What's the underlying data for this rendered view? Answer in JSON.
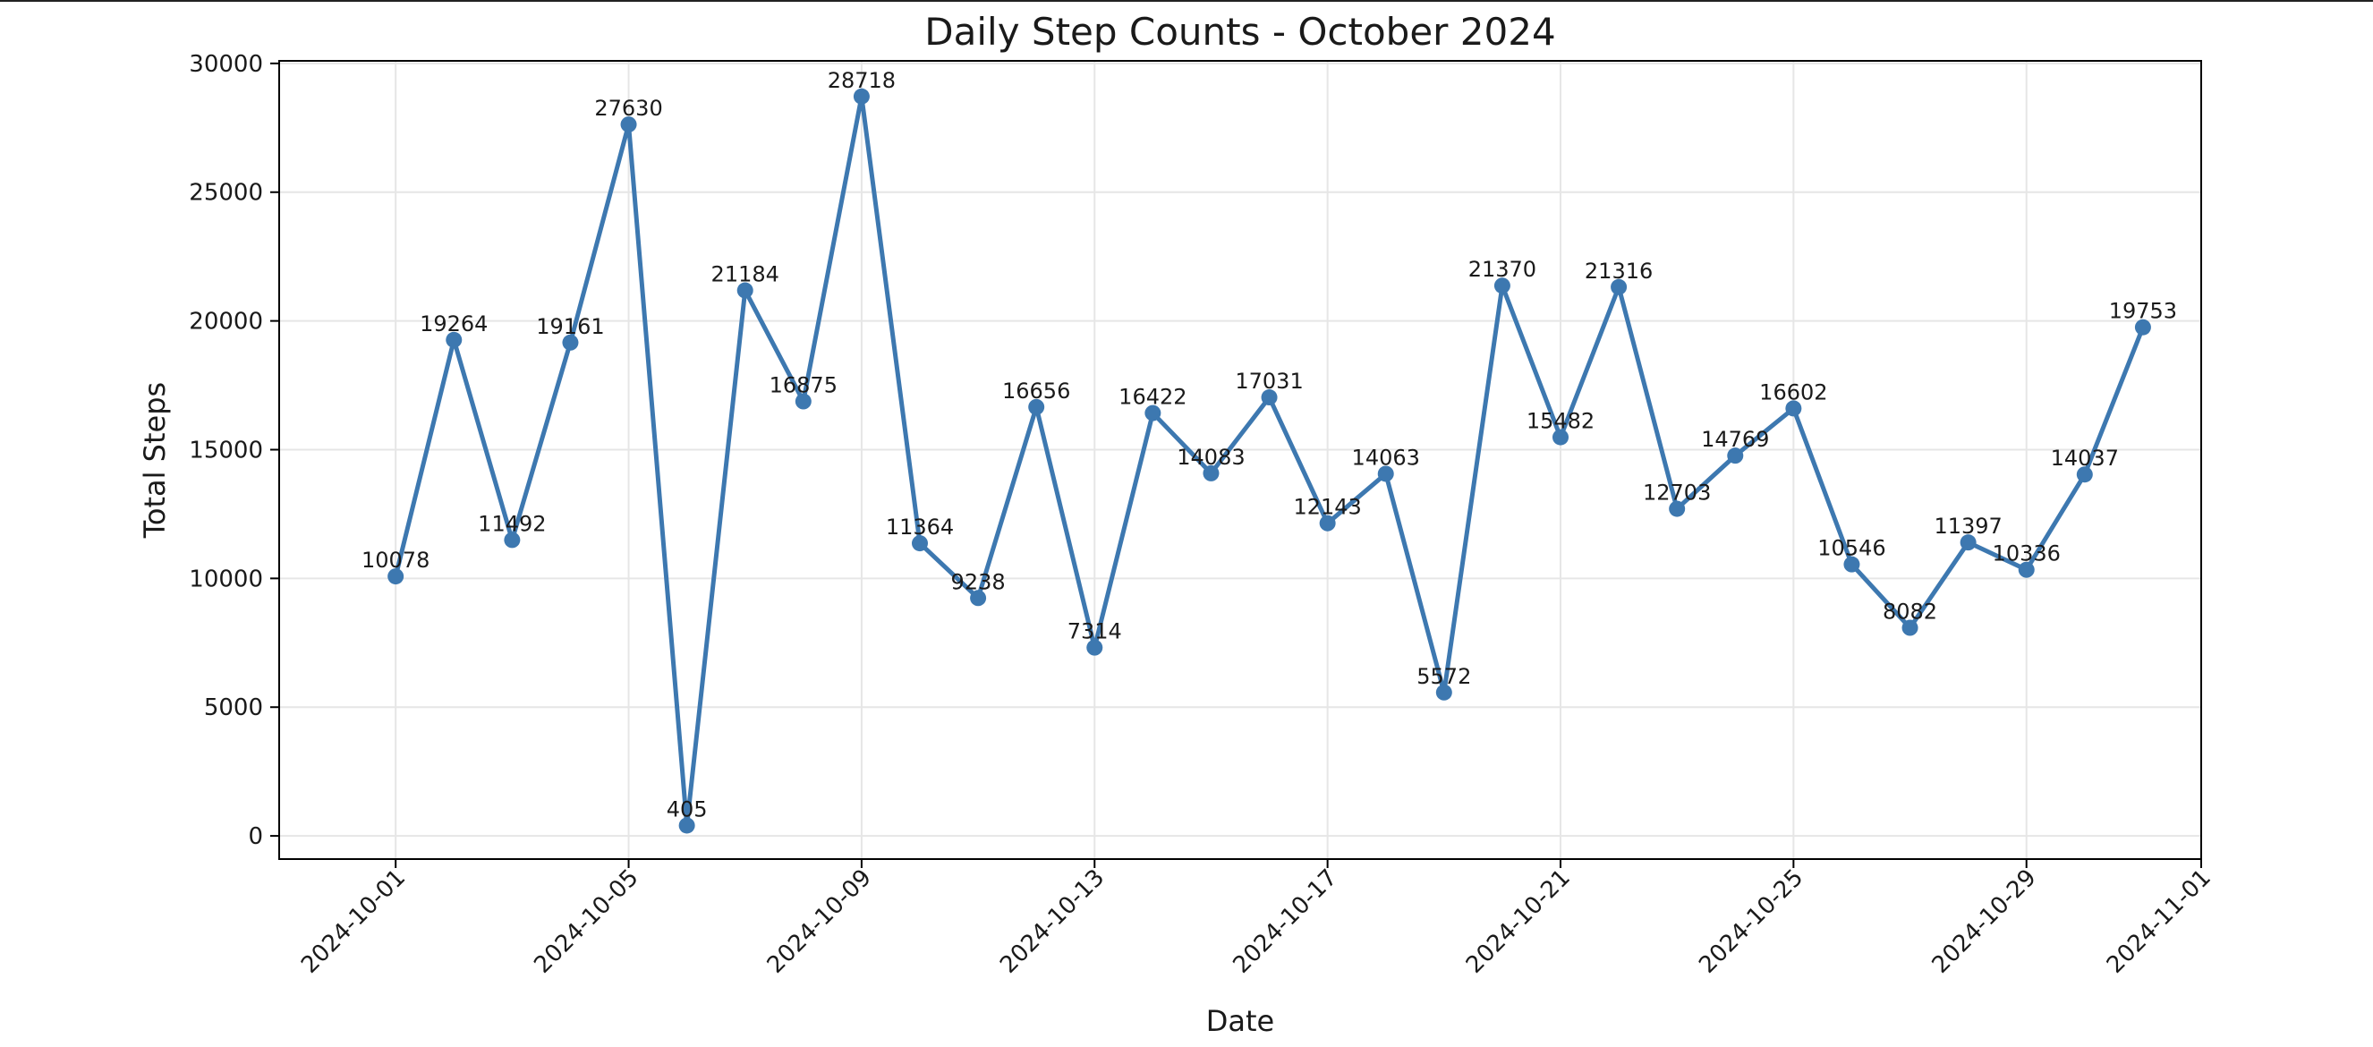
{
  "chart_data": {
    "type": "line",
    "title": "Daily Step Counts - October 2024",
    "xlabel": "Date",
    "ylabel": "Total Steps",
    "series": [
      {
        "x": [
          "2024-10-01",
          "2024-10-02",
          "2024-10-03",
          "2024-10-04",
          "2024-10-05",
          "2024-10-06",
          "2024-10-07",
          "2024-10-08",
          "2024-10-09",
          "2024-10-10",
          "2024-10-11",
          "2024-10-12",
          "2024-10-13",
          "2024-10-14",
          "2024-10-15",
          "2024-10-16",
          "2024-10-17",
          "2024-10-18",
          "2024-10-19",
          "2024-10-20",
          "2024-10-21",
          "2024-10-22",
          "2024-10-23",
          "2024-10-24",
          "2024-10-25",
          "2024-10-26",
          "2024-10-27",
          "2024-10-28",
          "2024-10-29",
          "2024-10-30",
          "2024-10-31"
        ],
        "values": [
          10078,
          19264,
          11492,
          19161,
          27630,
          405,
          21184,
          16875,
          28718,
          11364,
          9238,
          16656,
          7314,
          16422,
          14083,
          17031,
          12143,
          14063,
          5572,
          21370,
          15482,
          21316,
          12703,
          14769,
          16602,
          10546,
          8082,
          11397,
          10336,
          14037,
          19753
        ],
        "color": "#3d78b0"
      }
    ],
    "x_ticks": [
      "2024-10-01",
      "2024-10-05",
      "2024-10-09",
      "2024-10-13",
      "2024-10-17",
      "2024-10-21",
      "2024-10-25",
      "2024-10-29",
      "2024-11-01"
    ],
    "y_ticks": [
      0,
      5000,
      10000,
      15000,
      20000,
      25000,
      30000
    ],
    "xlim": [
      "2024-09-29",
      "2024-11-01"
    ],
    "ylim": [
      -900,
      30100
    ],
    "grid": true,
    "marker": "circle"
  }
}
